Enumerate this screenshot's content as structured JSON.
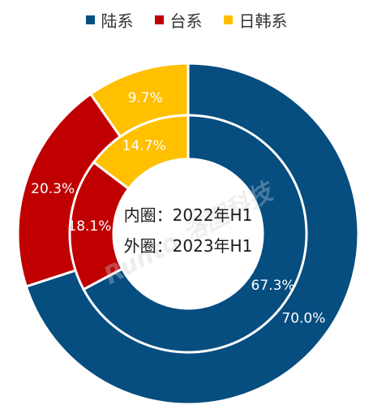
{
  "chart_data": {
    "type": "donut",
    "legend": [
      {
        "name": "陆系",
        "color": "#064d80"
      },
      {
        "name": "台系",
        "color": "#c00000"
      },
      {
        "name": "日韩系",
        "color": "#ffc000"
      }
    ],
    "rings": [
      {
        "name": "2022年H1",
        "position": "inner",
        "values": [
          67.3,
          18.1,
          14.7
        ],
        "labels": [
          "67.3%",
          "18.1%",
          "14.7%"
        ]
      },
      {
        "name": "2023年H1",
        "position": "outer",
        "values": [
          70.0,
          20.3,
          9.7
        ],
        "labels": [
          "70.0%",
          "20.3%",
          "9.7%"
        ]
      }
    ],
    "center_text": [
      "内圈：2022年H1",
      "外圈：2023年H1"
    ],
    "watermark": "Runto 洛图科技"
  }
}
